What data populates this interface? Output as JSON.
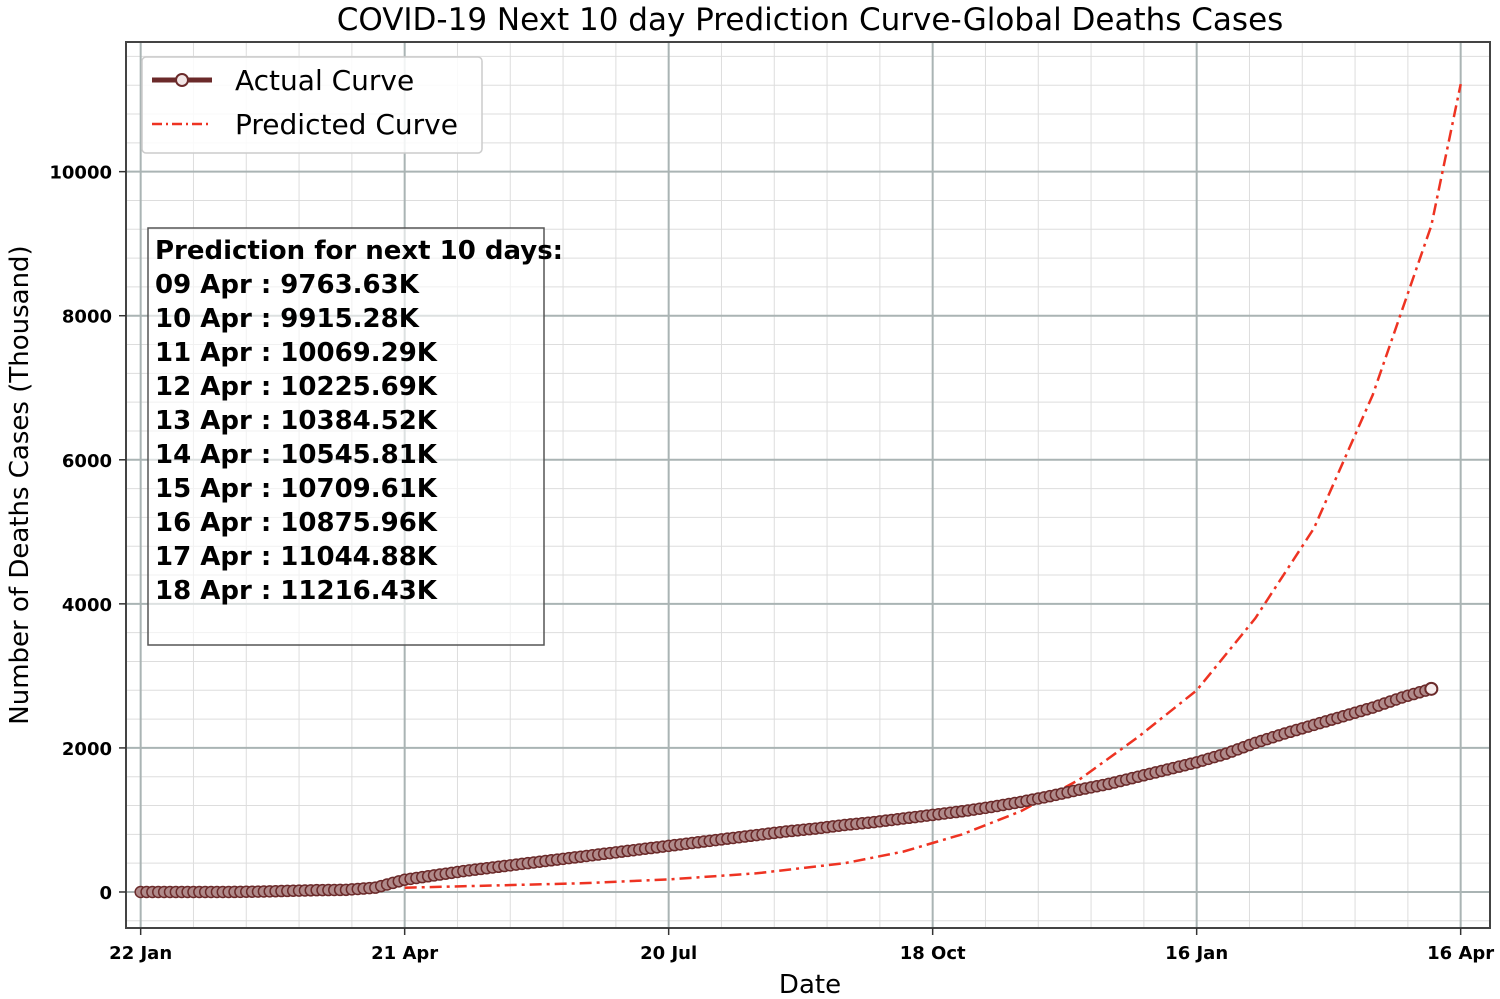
{
  "chart_data": {
    "type": "line",
    "title": "COVID-19 Next 10 day Prediction Curve-Global Deaths Cases",
    "xlabel": "Date",
    "ylabel": "Number of Deaths Cases (Thousand)",
    "xlim_days": [
      -5,
      460
    ],
    "ylim": [
      -500,
      11800
    ],
    "x_ticks": [
      {
        "day": 0,
        "label": "22 Jan"
      },
      {
        "day": 90,
        "label": "21 Apr"
      },
      {
        "day": 180,
        "label": "20 Jul"
      },
      {
        "day": 270,
        "label": "18 Oct"
      },
      {
        "day": 360,
        "label": "16 Jan"
      },
      {
        "day": 450,
        "label": "16 Apr"
      }
    ],
    "y_ticks": [
      0,
      2000,
      4000,
      6000,
      8000,
      10000
    ],
    "grid": true,
    "legend_position": "top-left",
    "series": [
      {
        "name": "Actual Curve",
        "style": "line-with-markers",
        "color": "#6b2a2a",
        "x": [
          0,
          10,
          20,
          30,
          40,
          50,
          60,
          70,
          80,
          90,
          100,
          110,
          120,
          130,
          140,
          150,
          160,
          170,
          180,
          190,
          200,
          210,
          220,
          230,
          240,
          250,
          260,
          270,
          280,
          290,
          300,
          310,
          320,
          330,
          340,
          350,
          360,
          370,
          380,
          390,
          400,
          410,
          420,
          430,
          440
        ],
        "y": [
          0,
          0,
          0,
          0,
          5,
          15,
          25,
          30,
          60,
          170,
          230,
          290,
          340,
          390,
          440,
          490,
          540,
          590,
          640,
          690,
          740,
          790,
          840,
          880,
          930,
          970,
          1020,
          1070,
          1120,
          1180,
          1250,
          1330,
          1420,
          1500,
          1600,
          1700,
          1800,
          1920,
          2070,
          2200,
          2320,
          2440,
          2560,
          2700,
          2820
        ]
      },
      {
        "name": "Predicted Curve",
        "style": "dash-dot",
        "color": "#ee3322",
        "x": [
          90,
          120,
          150,
          180,
          210,
          240,
          260,
          280,
          300,
          320,
          340,
          360,
          380,
          400,
          420,
          440,
          450
        ],
        "y": [
          60,
          90,
          120,
          175,
          260,
          400,
          560,
          800,
          1120,
          1560,
          2150,
          2800,
          3800,
          5050,
          6900,
          9250,
          11216
        ]
      }
    ],
    "annotation_box": {
      "heading": "Prediction for next 10 days:",
      "lines": [
        "09 Apr : 9763.63K",
        "10 Apr : 9915.28K",
        "11 Apr : 10069.29K",
        "12 Apr : 10225.69K",
        "13 Apr : 10384.52K",
        "14 Apr : 10545.81K",
        "15 Apr : 10709.61K",
        "16 Apr : 10875.96K",
        "17 Apr : 11044.88K",
        "18 Apr : 11216.43K"
      ]
    }
  }
}
